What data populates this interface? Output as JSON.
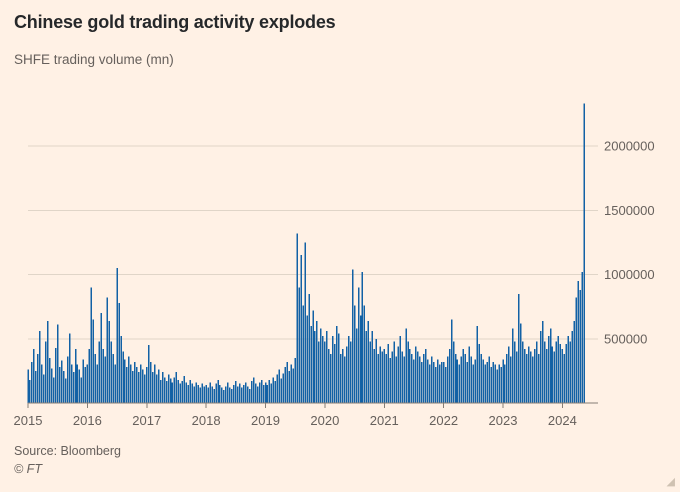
{
  "header": {
    "title": "Chinese gold trading activity explodes",
    "subtitle": "SHFE trading volume (mn)"
  },
  "footer": {
    "source": "Source: Bloomberg",
    "copyright": "© FT",
    "resize_icon": "◢"
  },
  "chart_data": {
    "type": "bar",
    "title": "Chinese gold trading activity explodes",
    "ylabel": "SHFE trading volume (mn)",
    "xlabel": "",
    "grid": "horizontal",
    "legend": "none",
    "x_range": [
      2015,
      2024.6
    ],
    "ylim": [
      0,
      2330000
    ],
    "x_start": 2015.0,
    "x_step": 0.0333333,
    "unit_scale": 1000,
    "x_tick_labels": [
      "2015",
      "2016",
      "2017",
      "2018",
      "2019",
      "2020",
      "2021",
      "2022",
      "2023",
      "2024"
    ],
    "y_ticks": [
      {
        "v": 500000,
        "label": "500000"
      },
      {
        "v": 1000000,
        "label": "1000000"
      },
      {
        "v": 1500000,
        "label": "1500000"
      },
      {
        "v": 2000000,
        "label": "2000000"
      }
    ],
    "colors": {
      "background": "#fff1e5",
      "bar": "#1261a5",
      "grid": "#e0d5c8",
      "axis": "#857d75",
      "tick_text": "#66605c"
    },
    "values_k": [
      260,
      180,
      320,
      420,
      250,
      380,
      560,
      300,
      220,
      480,
      640,
      350,
      270,
      200,
      430,
      610,
      280,
      330,
      250,
      190,
      360,
      540,
      300,
      240,
      420,
      300,
      260,
      200,
      340,
      280,
      300,
      420,
      900,
      650,
      380,
      300,
      480,
      700,
      420,
      360,
      820,
      640,
      480,
      380,
      300,
      1050,
      780,
      520,
      400,
      340,
      280,
      360,
      300,
      250,
      320,
      280,
      240,
      300,
      260,
      220,
      280,
      450,
      320,
      240,
      300,
      220,
      260,
      180,
      240,
      200,
      170,
      220,
      190,
      160,
      200,
      240,
      180,
      150,
      170,
      210,
      160,
      140,
      180,
      150,
      130,
      160,
      140,
      120,
      150,
      130,
      140,
      120,
      160,
      130,
      110,
      150,
      180,
      140,
      120,
      100,
      130,
      160,
      120,
      110,
      140,
      170,
      130,
      150,
      120,
      140,
      160,
      130,
      110,
      170,
      200,
      150,
      130,
      160,
      180,
      140,
      160,
      140,
      180,
      150,
      200,
      170,
      220,
      260,
      190,
      230,
      280,
      320,
      250,
      300,
      270,
      350,
      1320,
      900,
      1150,
      760,
      1250,
      680,
      850,
      600,
      720,
      560,
      640,
      480,
      580,
      520,
      480,
      560,
      420,
      380,
      520,
      460,
      600,
      540,
      380,
      420,
      360,
      440,
      520,
      480,
      1040,
      760,
      580,
      900,
      680,
      1020,
      760,
      560,
      640,
      480,
      560,
      420,
      500,
      380,
      440,
      400,
      420,
      380,
      460,
      350,
      400,
      480,
      360,
      440,
      520,
      400,
      360,
      580,
      480,
      420,
      380,
      340,
      440,
      400,
      360,
      320,
      380,
      420,
      340,
      300,
      360,
      320,
      280,
      340,
      300,
      320,
      320,
      280,
      360,
      420,
      650,
      480,
      380,
      340,
      300,
      360,
      420,
      380,
      320,
      440,
      360,
      300,
      340,
      600,
      460,
      380,
      340,
      300,
      320,
      360,
      280,
      320,
      300,
      260,
      300,
      280,
      340,
      300,
      380,
      440,
      360,
      580,
      480,
      400,
      850,
      620,
      480,
      420,
      380,
      440,
      400,
      360,
      420,
      480,
      380,
      560,
      640,
      480,
      420,
      520,
      580,
      440,
      400,
      480,
      520,
      460,
      420,
      380,
      460,
      520,
      480,
      560,
      640,
      820,
      950,
      880,
      1020,
      2330
    ]
  }
}
